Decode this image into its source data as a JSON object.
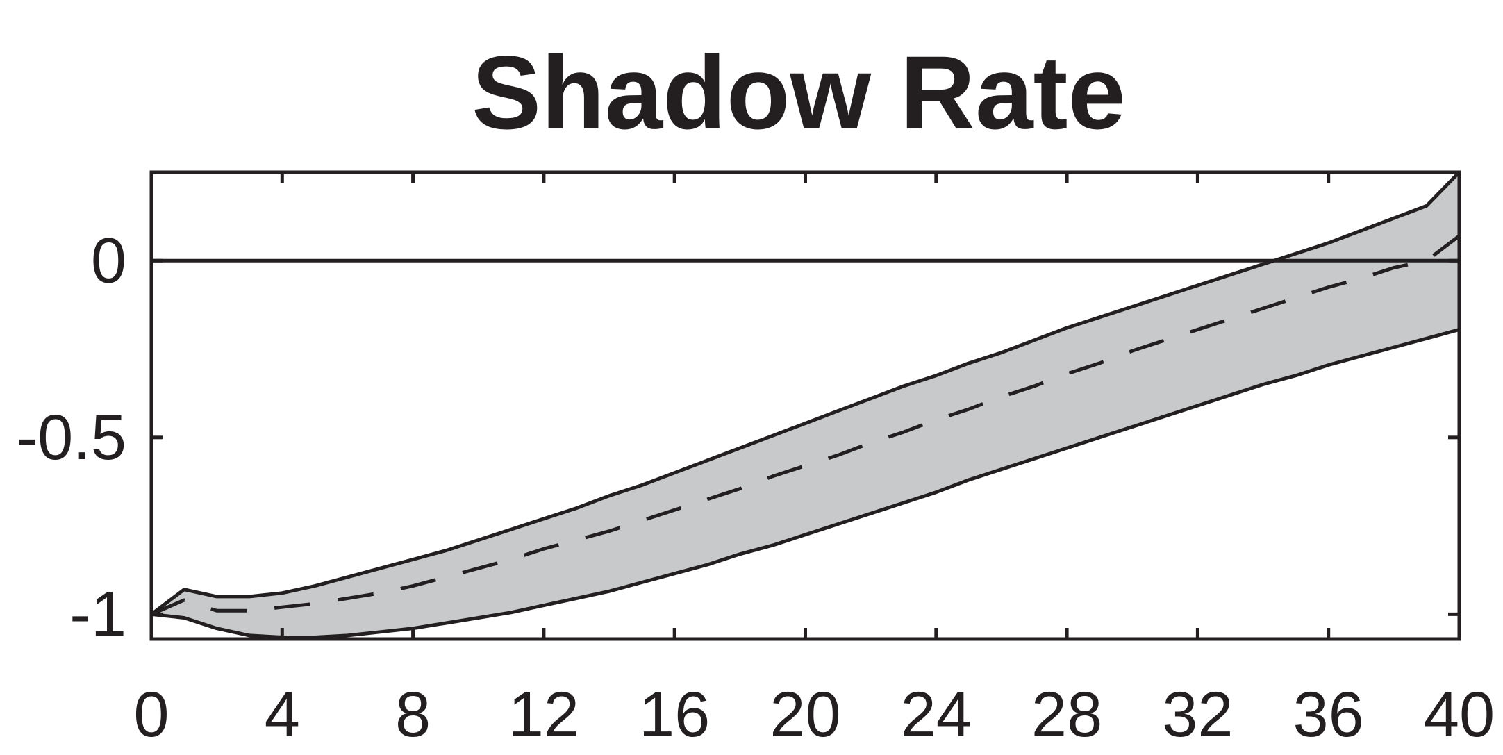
{
  "chart_data": {
    "type": "line",
    "title": "Shadow Rate",
    "xlabel": "",
    "ylabel": "",
    "xlim": [
      0,
      40
    ],
    "ylim": [
      -1.07,
      0.25
    ],
    "x_ticks": [
      0,
      4,
      8,
      12,
      16,
      20,
      24,
      28,
      32,
      36,
      40
    ],
    "x_tick_labels": [
      "0",
      "4",
      "8",
      "12",
      "16",
      "20",
      "24",
      "28",
      "32",
      "36",
      "40"
    ],
    "y_ticks": [
      0,
      -0.5,
      -1
    ],
    "y_tick_labels": [
      "0",
      "-0.5",
      "-1"
    ],
    "grid": false,
    "zero_line": true,
    "x": [
      0,
      1,
      2,
      3,
      4,
      5,
      6,
      7,
      8,
      9,
      10,
      11,
      12,
      13,
      14,
      15,
      16,
      17,
      18,
      19,
      20,
      21,
      22,
      23,
      24,
      25,
      26,
      27,
      28,
      29,
      30,
      31,
      32,
      33,
      34,
      35,
      36,
      37,
      38,
      39,
      40
    ],
    "series": [
      {
        "role": "upper-band",
        "values": [
          -1.0,
          -0.93,
          -0.95,
          -0.95,
          -0.94,
          -0.92,
          -0.895,
          -0.87,
          -0.845,
          -0.82,
          -0.79,
          -0.76,
          -0.73,
          -0.7,
          -0.665,
          -0.635,
          -0.6,
          -0.565,
          -0.53,
          -0.495,
          -0.46,
          -0.425,
          -0.39,
          -0.355,
          -0.325,
          -0.29,
          -0.26,
          -0.225,
          -0.19,
          -0.16,
          -0.13,
          -0.1,
          -0.07,
          -0.04,
          -0.01,
          0.02,
          0.05,
          0.085,
          0.12,
          0.155,
          0.25
        ]
      },
      {
        "role": "median",
        "values": [
          -1.0,
          -0.96,
          -0.99,
          -0.99,
          -0.98,
          -0.97,
          -0.955,
          -0.94,
          -0.92,
          -0.895,
          -0.87,
          -0.845,
          -0.815,
          -0.79,
          -0.765,
          -0.735,
          -0.705,
          -0.675,
          -0.645,
          -0.61,
          -0.58,
          -0.55,
          -0.515,
          -0.485,
          -0.45,
          -0.42,
          -0.385,
          -0.355,
          -0.32,
          -0.29,
          -0.255,
          -0.225,
          -0.195,
          -0.165,
          -0.135,
          -0.105,
          -0.075,
          -0.05,
          -0.02,
          0.0,
          0.07
        ]
      },
      {
        "role": "lower-band",
        "values": [
          -1.0,
          -1.01,
          -1.04,
          -1.06,
          -1.065,
          -1.065,
          -1.06,
          -1.05,
          -1.04,
          -1.025,
          -1.01,
          -0.995,
          -0.975,
          -0.955,
          -0.935,
          -0.91,
          -0.885,
          -0.86,
          -0.83,
          -0.805,
          -0.775,
          -0.745,
          -0.715,
          -0.685,
          -0.655,
          -0.62,
          -0.59,
          -0.56,
          -0.53,
          -0.5,
          -0.47,
          -0.44,
          -0.41,
          -0.38,
          -0.35,
          -0.325,
          -0.295,
          -0.27,
          -0.245,
          -0.22,
          -0.195
        ]
      }
    ],
    "colors": {
      "band_fill": "#c8c9cb",
      "line": "#231f20",
      "axis": "#231f20",
      "background": "#ffffff"
    }
  }
}
